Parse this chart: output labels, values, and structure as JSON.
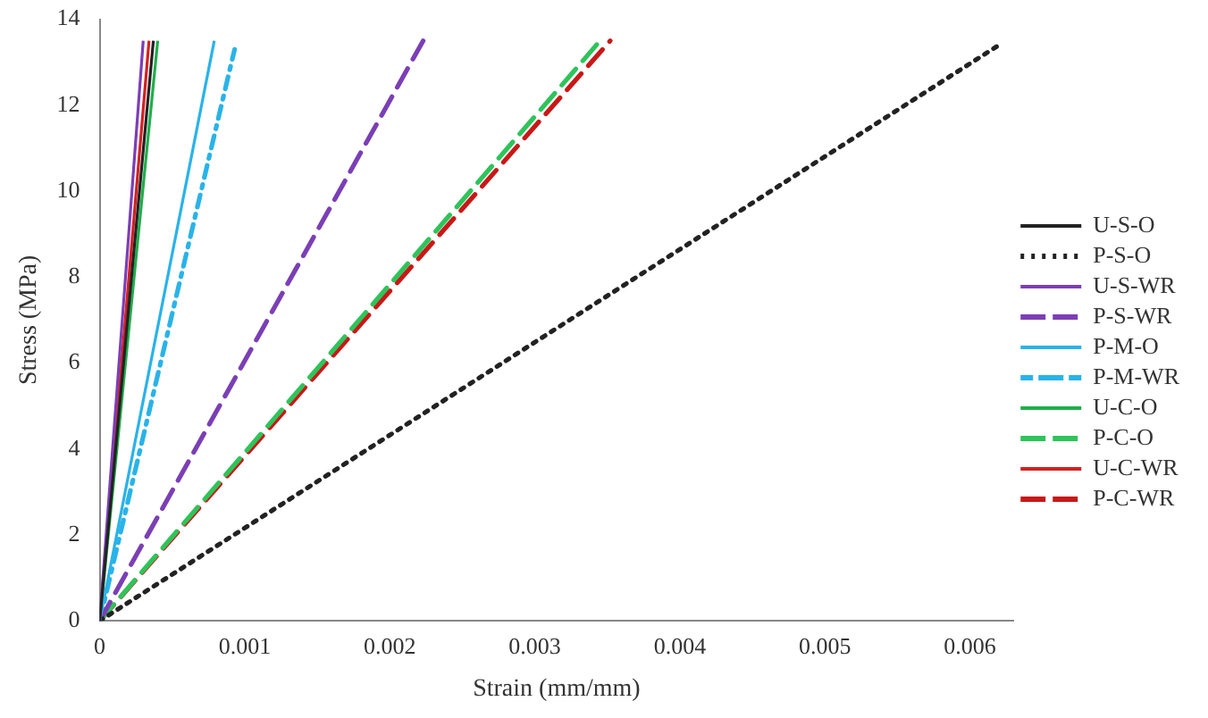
{
  "chart_data": {
    "type": "line",
    "xlabel": "Strain (mm/mm)",
    "ylabel": "Stress (MPa)",
    "xlim": [
      0,
      0.0063
    ],
    "xticks": [
      0,
      0.001,
      0.002,
      0.003,
      0.004,
      0.005,
      0.006
    ],
    "ylim": [
      0,
      14
    ],
    "yticks": [
      0,
      2,
      4,
      6,
      8,
      10,
      12,
      14
    ],
    "grid": false,
    "legend": "right",
    "marker": "none",
    "series": [
      {
        "name": "U-S-O",
        "color": "#222222",
        "line_style": "solid",
        "x": [
          0,
          0.00037
        ],
        "values": [
          0,
          13.5
        ]
      },
      {
        "name": "P-S-O",
        "color": "#222222",
        "line_style": "dotted",
        "x": [
          0,
          0.0062
        ],
        "values": [
          0,
          13.4
        ]
      },
      {
        "name": "U-S-WR",
        "color": "#7b3fb5",
        "line_style": "solid",
        "x": [
          0,
          0.0003
        ],
        "values": [
          0,
          13.5
        ]
      },
      {
        "name": "P-S-WR",
        "color": "#7b3fb5",
        "line_style": "dashed",
        "x": [
          0,
          0.00223
        ],
        "values": [
          0,
          13.5
        ]
      },
      {
        "name": "P-M-O",
        "color": "#29b3e8",
        "line_style": "solid",
        "x": [
          0,
          0.00079
        ],
        "values": [
          0,
          13.5
        ]
      },
      {
        "name": "P-M-WR",
        "color": "#29b3e8",
        "line_style": "dashdot",
        "x": [
          0,
          0.00093
        ],
        "values": [
          0,
          13.3
        ]
      },
      {
        "name": "U-C-O",
        "color": "#1fae4a",
        "line_style": "solid",
        "x": [
          0,
          0.0004
        ],
        "values": [
          0,
          13.5
        ]
      },
      {
        "name": "P-C-O",
        "color": "#2ec45a",
        "line_style": "dashed",
        "x": [
          0,
          0.00345
        ],
        "values": [
          0,
          13.5
        ]
      },
      {
        "name": "U-C-WR",
        "color": "#d42020",
        "line_style": "solid",
        "x": [
          0,
          0.00034
        ],
        "values": [
          0,
          13.5
        ]
      },
      {
        "name": "P-C-WR",
        "color": "#c81818",
        "line_style": "dashed",
        "x": [
          0,
          0.00352
        ],
        "values": [
          0,
          13.5
        ]
      }
    ]
  }
}
